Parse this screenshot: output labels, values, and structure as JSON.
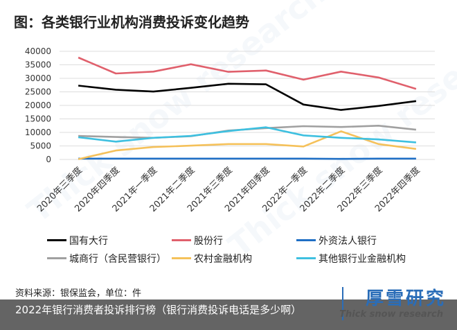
{
  "title": "图：各类银行业机构消费投诉变化趋势",
  "source_note": "资料来源：银保监会，单位：件",
  "footer_caption": "2022年银行消费者投诉排行榜（银行消费投诉电话是多少啊）",
  "brand": {
    "name": "厚雪研究",
    "sub": "Thick snow research"
  },
  "colors": {
    "bar": "#333333"
  },
  "chart_data": {
    "type": "line",
    "title": "图：各类银行业机构消费投诉变化趋势",
    "xlabel": "",
    "ylabel": "",
    "ylim": [
      0,
      40000
    ],
    "yticks": [
      "0",
      "5000",
      "10000",
      "15000",
      "20000",
      "25000",
      "30000",
      "35000",
      "40000"
    ],
    "grid": true,
    "legend_position": "bottom",
    "categories": [
      "2020年三季度",
      "2020年四季度",
      "2021年一季度",
      "2021年二季度",
      "2021年三季度",
      "2021年四季度",
      "2022年一季度",
      "2022年二季度",
      "2022年三季度",
      "2022年四季度"
    ],
    "series": [
      {
        "name": "国有大行",
        "color": "#000000",
        "values": [
          27300,
          25800,
          25100,
          26500,
          28000,
          27800,
          20300,
          18300,
          19800,
          21600
        ]
      },
      {
        "name": "股份行",
        "color": "#e0606c",
        "values": [
          37700,
          31800,
          32500,
          35200,
          32400,
          32900,
          29500,
          32500,
          30300,
          26100
        ]
      },
      {
        "name": "外资法人银行",
        "color": "#1f6fc5",
        "values": [
          300,
          300,
          300,
          300,
          300,
          300,
          300,
          200,
          300,
          300
        ]
      },
      {
        "name": "城商行（含民营银行）",
        "color": "#a0a0a0",
        "values": [
          8700,
          8300,
          8000,
          8600,
          10700,
          11600,
          12300,
          12000,
          12500,
          11000
        ]
      },
      {
        "name": "农村金融机构",
        "color": "#f5c15a",
        "values": [
          100,
          3300,
          4600,
          5100,
          5700,
          5700,
          4800,
          10400,
          5700,
          3900
        ]
      },
      {
        "name": "其他银行业金融机构",
        "color": "#3ec0e0",
        "values": [
          8200,
          6600,
          8000,
          8700,
          10500,
          11900,
          8900,
          8000,
          7400,
          6300
        ]
      }
    ]
  }
}
